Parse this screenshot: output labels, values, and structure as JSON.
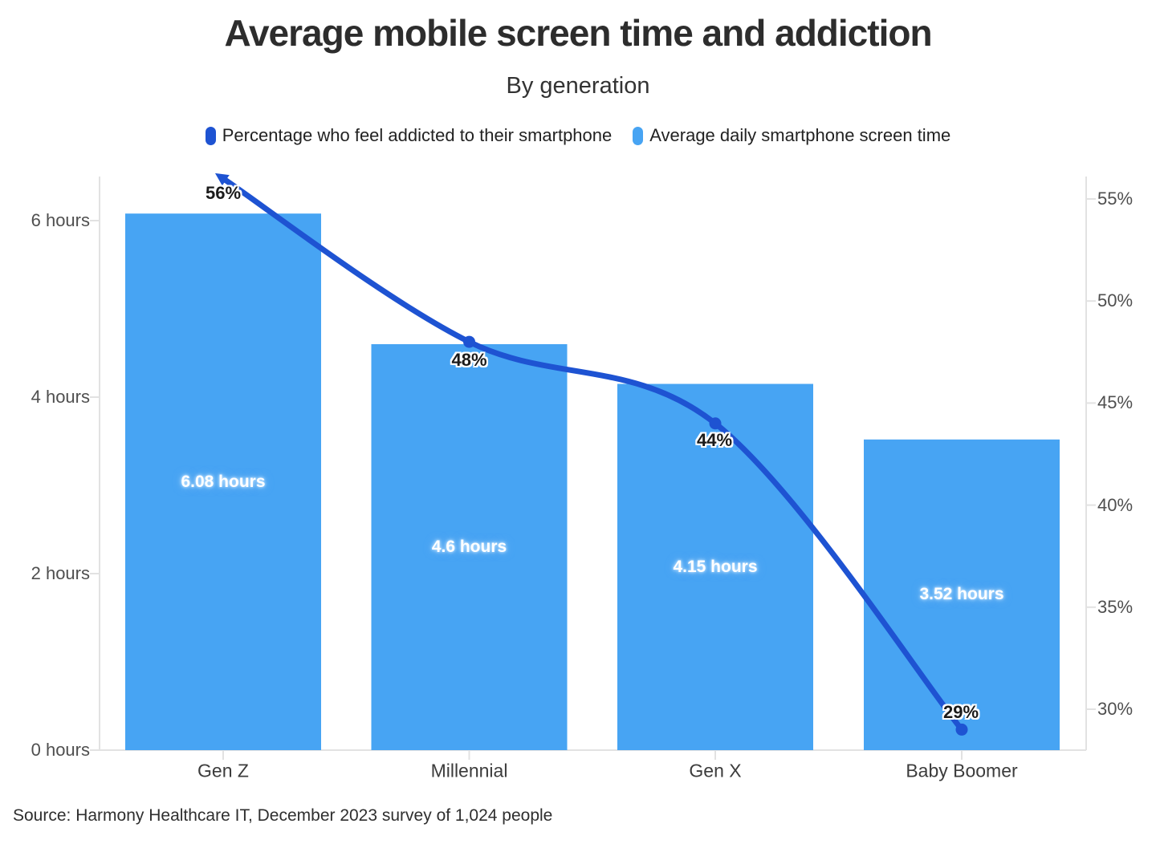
{
  "header": {
    "title": "Average mobile screen time and addiction",
    "subtitle": "By generation"
  },
  "legend": {
    "items": [
      {
        "label": "Percentage who feel addicted to their smartphone",
        "color": "#1e53d2"
      },
      {
        "label": "Average daily smartphone screen time",
        "color": "#47a4f3"
      }
    ]
  },
  "footer": {
    "source": "Source: Harmony Healthcare IT, December 2023 survey of 1,024 people"
  },
  "chart_data": {
    "type": "combo",
    "title": "Average mobile screen time and addiction",
    "subtitle": "By generation",
    "categories": [
      "Gen Z",
      "Millennial",
      "Gen X",
      "Baby Boomer"
    ],
    "series": [
      {
        "name": "Average daily smartphone screen time",
        "type": "bar",
        "axis": "left",
        "color": "#47a4f3",
        "values": [
          6.08,
          4.6,
          4.15,
          3.52
        ],
        "labels": [
          "6.08 hours",
          "4.6 hours",
          "4.15 hours",
          "3.52 hours"
        ]
      },
      {
        "name": "Percentage who feel addicted to their smartphone",
        "type": "line",
        "axis": "right",
        "color": "#1e53d2",
        "values": [
          56,
          48,
          44,
          29
        ],
        "labels": [
          "56%",
          "48%",
          "44%",
          "29%"
        ],
        "start_arrow": true
      }
    ],
    "left_axis": {
      "ticks": [
        0,
        2,
        4,
        6
      ],
      "tick_labels": [
        "0 hours",
        "2 hours",
        "4 hours",
        "6 hours"
      ],
      "range": [
        0,
        6.5
      ]
    },
    "right_axis": {
      "ticks": [
        30,
        35,
        40,
        45,
        50,
        55
      ],
      "tick_labels": [
        "30%",
        "35%",
        "40%",
        "45%",
        "50%",
        "55%"
      ],
      "range": [
        28,
        56.1
      ]
    },
    "grid": "off",
    "legend_position": "top"
  }
}
